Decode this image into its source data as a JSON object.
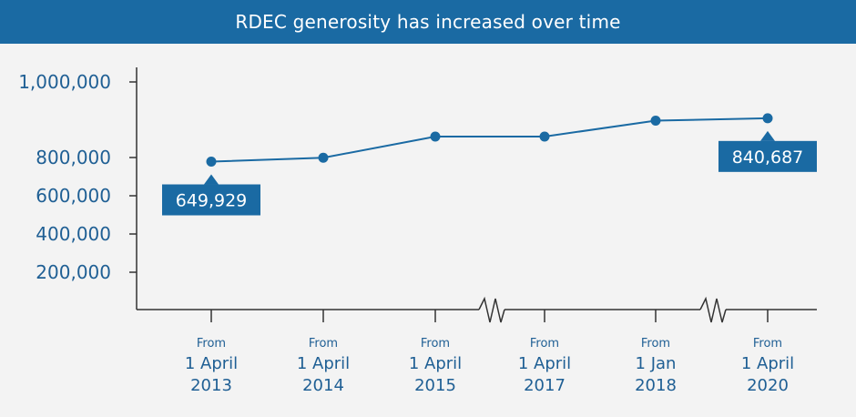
{
  "chart_data": {
    "type": "line",
    "title": "RDEC generosity has increased over time",
    "xlabel": "",
    "ylabel": "",
    "ylim": [
      0,
      1000000
    ],
    "yticks": [
      {
        "value": 200000,
        "label": "200,000"
      },
      {
        "value": 400000,
        "label": "400,000"
      },
      {
        "value": 600000,
        "label": "600,000"
      },
      {
        "value": 800000,
        "label": "800,000"
      },
      {
        "value": 1000000,
        "label": "1,000,000"
      }
    ],
    "categories": [
      {
        "line1": "From",
        "line2": "1 April",
        "line3": "2013"
      },
      {
        "line1": "From",
        "line2": "1 April",
        "line3": "2014"
      },
      {
        "line1": "From",
        "line2": "1 April",
        "line3": "2015"
      },
      {
        "line1": "From",
        "line2": "1 April",
        "line3": "2017"
      },
      {
        "line1": "From",
        "line2": "1 Jan",
        "line3": "2018"
      },
      {
        "line1": "From",
        "line2": "1 April",
        "line3": "2020"
      }
    ],
    "series": [
      {
        "values": [
          649929,
          667000,
          760000,
          760000,
          830000,
          840687
        ]
      }
    ],
    "annotations": [
      {
        "index": 0,
        "label": "649,929",
        "position": "below"
      },
      {
        "index": 5,
        "label": "840,687",
        "position": "below"
      }
    ],
    "axis_breaks": [
      {
        "between": [
          2,
          3
        ]
      },
      {
        "between": [
          4,
          5
        ]
      }
    ],
    "grid": false,
    "colors": {
      "line": "#1a6aa3",
      "axis": "#333333",
      "header": "#1a6aa3",
      "text": "#1f5f94",
      "background": "#f3f3f3"
    }
  }
}
